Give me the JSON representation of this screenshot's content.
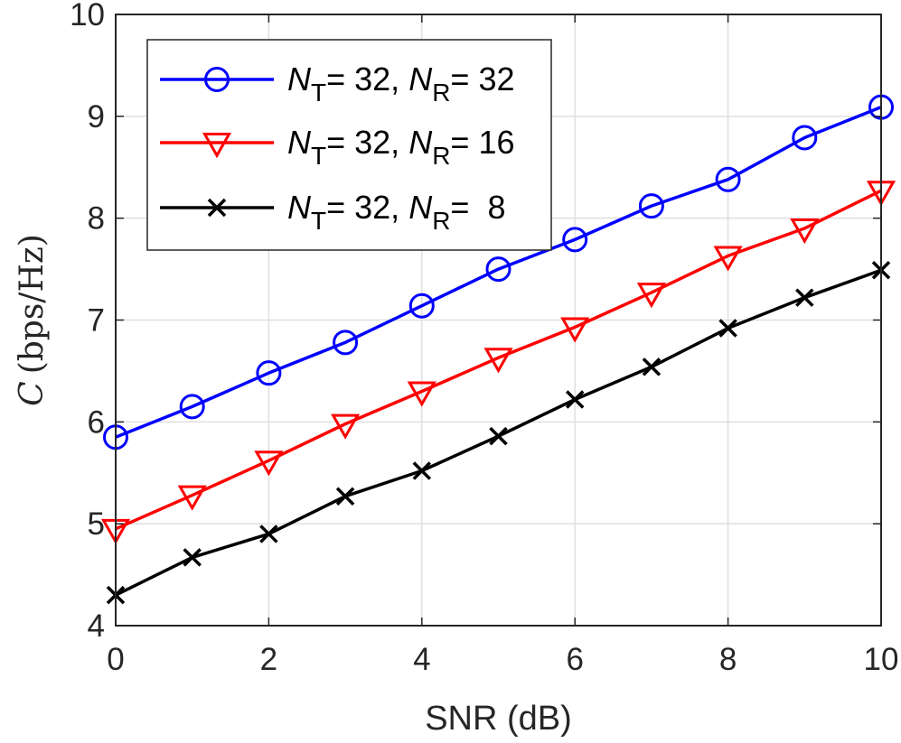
{
  "chart_data": {
    "type": "line",
    "title": "",
    "xlabel": "SNR (dB)",
    "ylabel": {
      "symbol": "C",
      "unit": "(bps/Hz)"
    },
    "xlim": [
      0,
      10
    ],
    "ylim": [
      4,
      10
    ],
    "xticks": [
      0,
      2,
      4,
      6,
      8,
      10
    ],
    "yticks": [
      4,
      5,
      6,
      7,
      8,
      9,
      10
    ],
    "grid": true,
    "legend_position": "top-left",
    "x": [
      0,
      1,
      2,
      3,
      4,
      5,
      6,
      7,
      8,
      9,
      10
    ],
    "series": [
      {
        "name": "N_T = 32, N_R = 32",
        "legend": {
          "n1": "N",
          "s1": "T",
          "m1": "= 32, ",
          "n2": "N",
          "s2": "R",
          "m2": "= 32"
        },
        "color": "#0000ff",
        "marker": "circle",
        "values": [
          5.85,
          6.15,
          6.48,
          6.78,
          7.14,
          7.5,
          7.79,
          8.12,
          8.38,
          8.79,
          9.09
        ]
      },
      {
        "name": "N_T = 32, N_R = 16",
        "legend": {
          "n1": "N",
          "s1": "T",
          "m1": "= 32, ",
          "n2": "N",
          "s2": "R",
          "m2": "= 16"
        },
        "color": "#ff0000",
        "marker": "triangle-down",
        "values": [
          4.95,
          5.28,
          5.62,
          5.98,
          6.3,
          6.63,
          6.93,
          7.27,
          7.63,
          7.9,
          8.27
        ]
      },
      {
        "name": "N_T = 32, N_R = 8",
        "legend": {
          "n1": "N",
          "s1": "T",
          "m1": "= 32, ",
          "n2": "N",
          "s2": "R",
          "m2": "=  8"
        },
        "color": "#000000",
        "marker": "x",
        "values": [
          4.3,
          4.67,
          4.9,
          5.27,
          5.52,
          5.86,
          6.22,
          6.54,
          6.92,
          7.22,
          7.49
        ]
      }
    ]
  }
}
